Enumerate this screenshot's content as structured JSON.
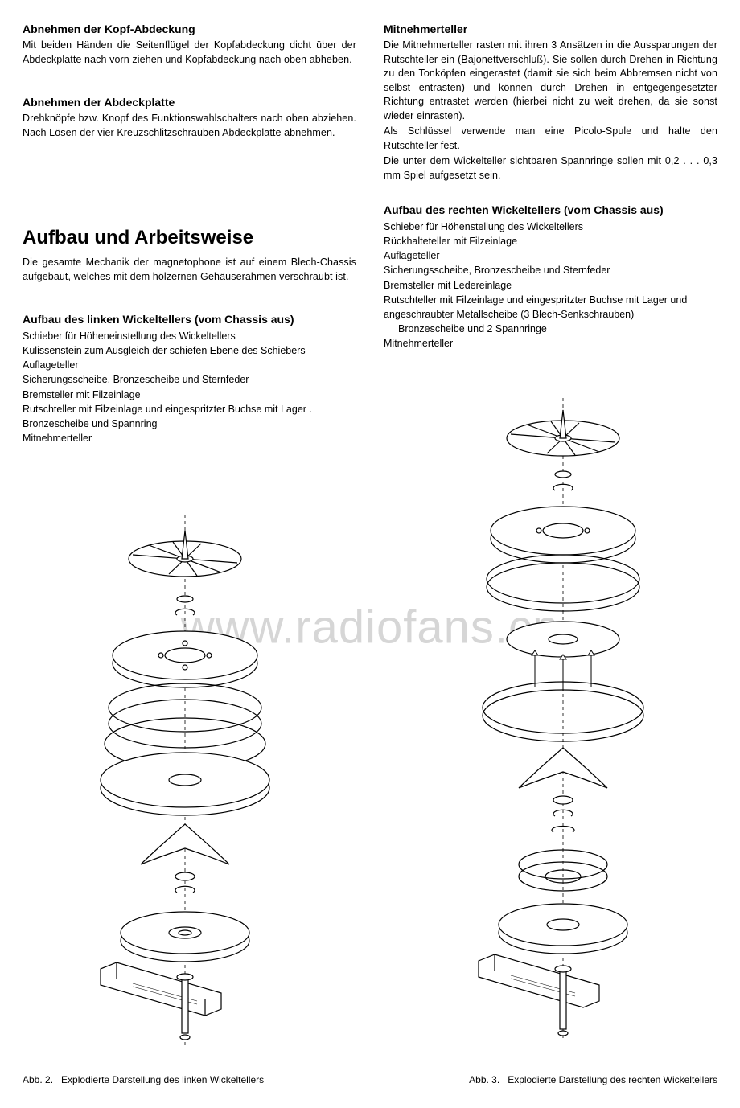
{
  "typography": {
    "body_font": "Arial, Helvetica, sans-serif",
    "body_size_pt": 12.5,
    "h3_size_pt": 14,
    "h1_size_pt": 24,
    "text_color": "#000000",
    "background_color": "#ffffff",
    "watermark_color_rgba": "rgba(180,180,180,0.55)"
  },
  "watermark": "www.radiofans.cn",
  "left_column": {
    "section1": {
      "heading": "Abnehmen der Kopf-Abdeckung",
      "body": "Mit beiden Händen die Seitenflügel der Kopfabdeckung dicht über der Abdeckplatte nach vorn ziehen und Kopfabdeckung nach oben abheben."
    },
    "section2": {
      "heading": "Abnehmen der Abdeckplatte",
      "body": "Drehknöpfe bzw. Knopf des Funktionswahlschalters nach oben abziehen. Nach Lösen der vier Kreuzschlitzschrauben Abdeckplatte abnehmen."
    },
    "section3": {
      "heading": "Aufbau und Arbeitsweise",
      "body": "Die gesamte Mechanik der magnetophone ist auf einem Blech-Chassis aufgebaut, welches mit dem hölzernen Gehäuserahmen verschraubt ist."
    },
    "section4": {
      "heading": "Aufbau des linken Wickeltellers (vom Chassis aus)",
      "items": [
        "Schieber für Höheneinstellung des Wickeltellers",
        "Kulissenstein zum Ausgleich der schiefen Ebene des Schiebers",
        "Auflageteller",
        "Sicherungsscheibe, Bronzescheibe und Sternfeder",
        "Bremsteller mit Filzeinlage",
        "Rutschteller mit Filzeinlage und eingespritzter Buchse mit Lager .",
        "Bronzescheibe und Spannring",
        "Mitnehmerteller"
      ]
    }
  },
  "right_column": {
    "section1": {
      "heading": "Mitnehmerteller",
      "body1": "Die Mitnehmerteller rasten mit ihren 3 Ansätzen in die Aussparungen der Rutschteller ein (Bajonettverschluß). Sie sollen durch Drehen in Richtung zu den Tonköpfen eingerastet (damit sie sich beim Abbremsen nicht von selbst entrasten) und können durch Drehen in entgegengesetzter Richtung entrastet werden (hierbei nicht zu weit drehen, da sie sonst wieder einrasten).",
      "body2": "Als Schlüssel verwende man eine Picolo-Spule und halte den Rutschteller fest.",
      "body3": "Die unter dem Wickelteller sichtbaren Spannringe sollen mit 0,2 . . . 0,3 mm Spiel aufgesetzt sein."
    },
    "section2": {
      "heading": "Aufbau des rechten Wickeltellers (vom Chassis aus)",
      "items": [
        "Schieber für Höhenstellung des Wickeltellers",
        "Rückhalteteller mit Filzeinlage",
        "Auflageteller",
        "Sicherungsscheibe, Bronzescheibe und Sternfeder",
        "Bremsteller mit Ledereinlage",
        "Rutschteller mit Filzeinlage und eingespritzter Buchse mit Lager und angeschraubter Metallscheibe (3 Blech-Senkschrauben)",
        "Bronzescheibe und 2 Spannringe",
        "Mitnehmerteller"
      ],
      "indent_index": 6
    }
  },
  "figures": {
    "left": {
      "label": "Abb. 2.",
      "caption": "Explodierte Darstellung des linken Wickeltellers"
    },
    "right": {
      "label": "Abb. 3.",
      "caption": "Explodierte Darstellung des rechten Wickeltellers"
    },
    "diagram_style": {
      "type": "exploded-line-drawing",
      "stroke": "#000000",
      "stroke_width": 1.2,
      "fill": "#ffffff"
    }
  }
}
